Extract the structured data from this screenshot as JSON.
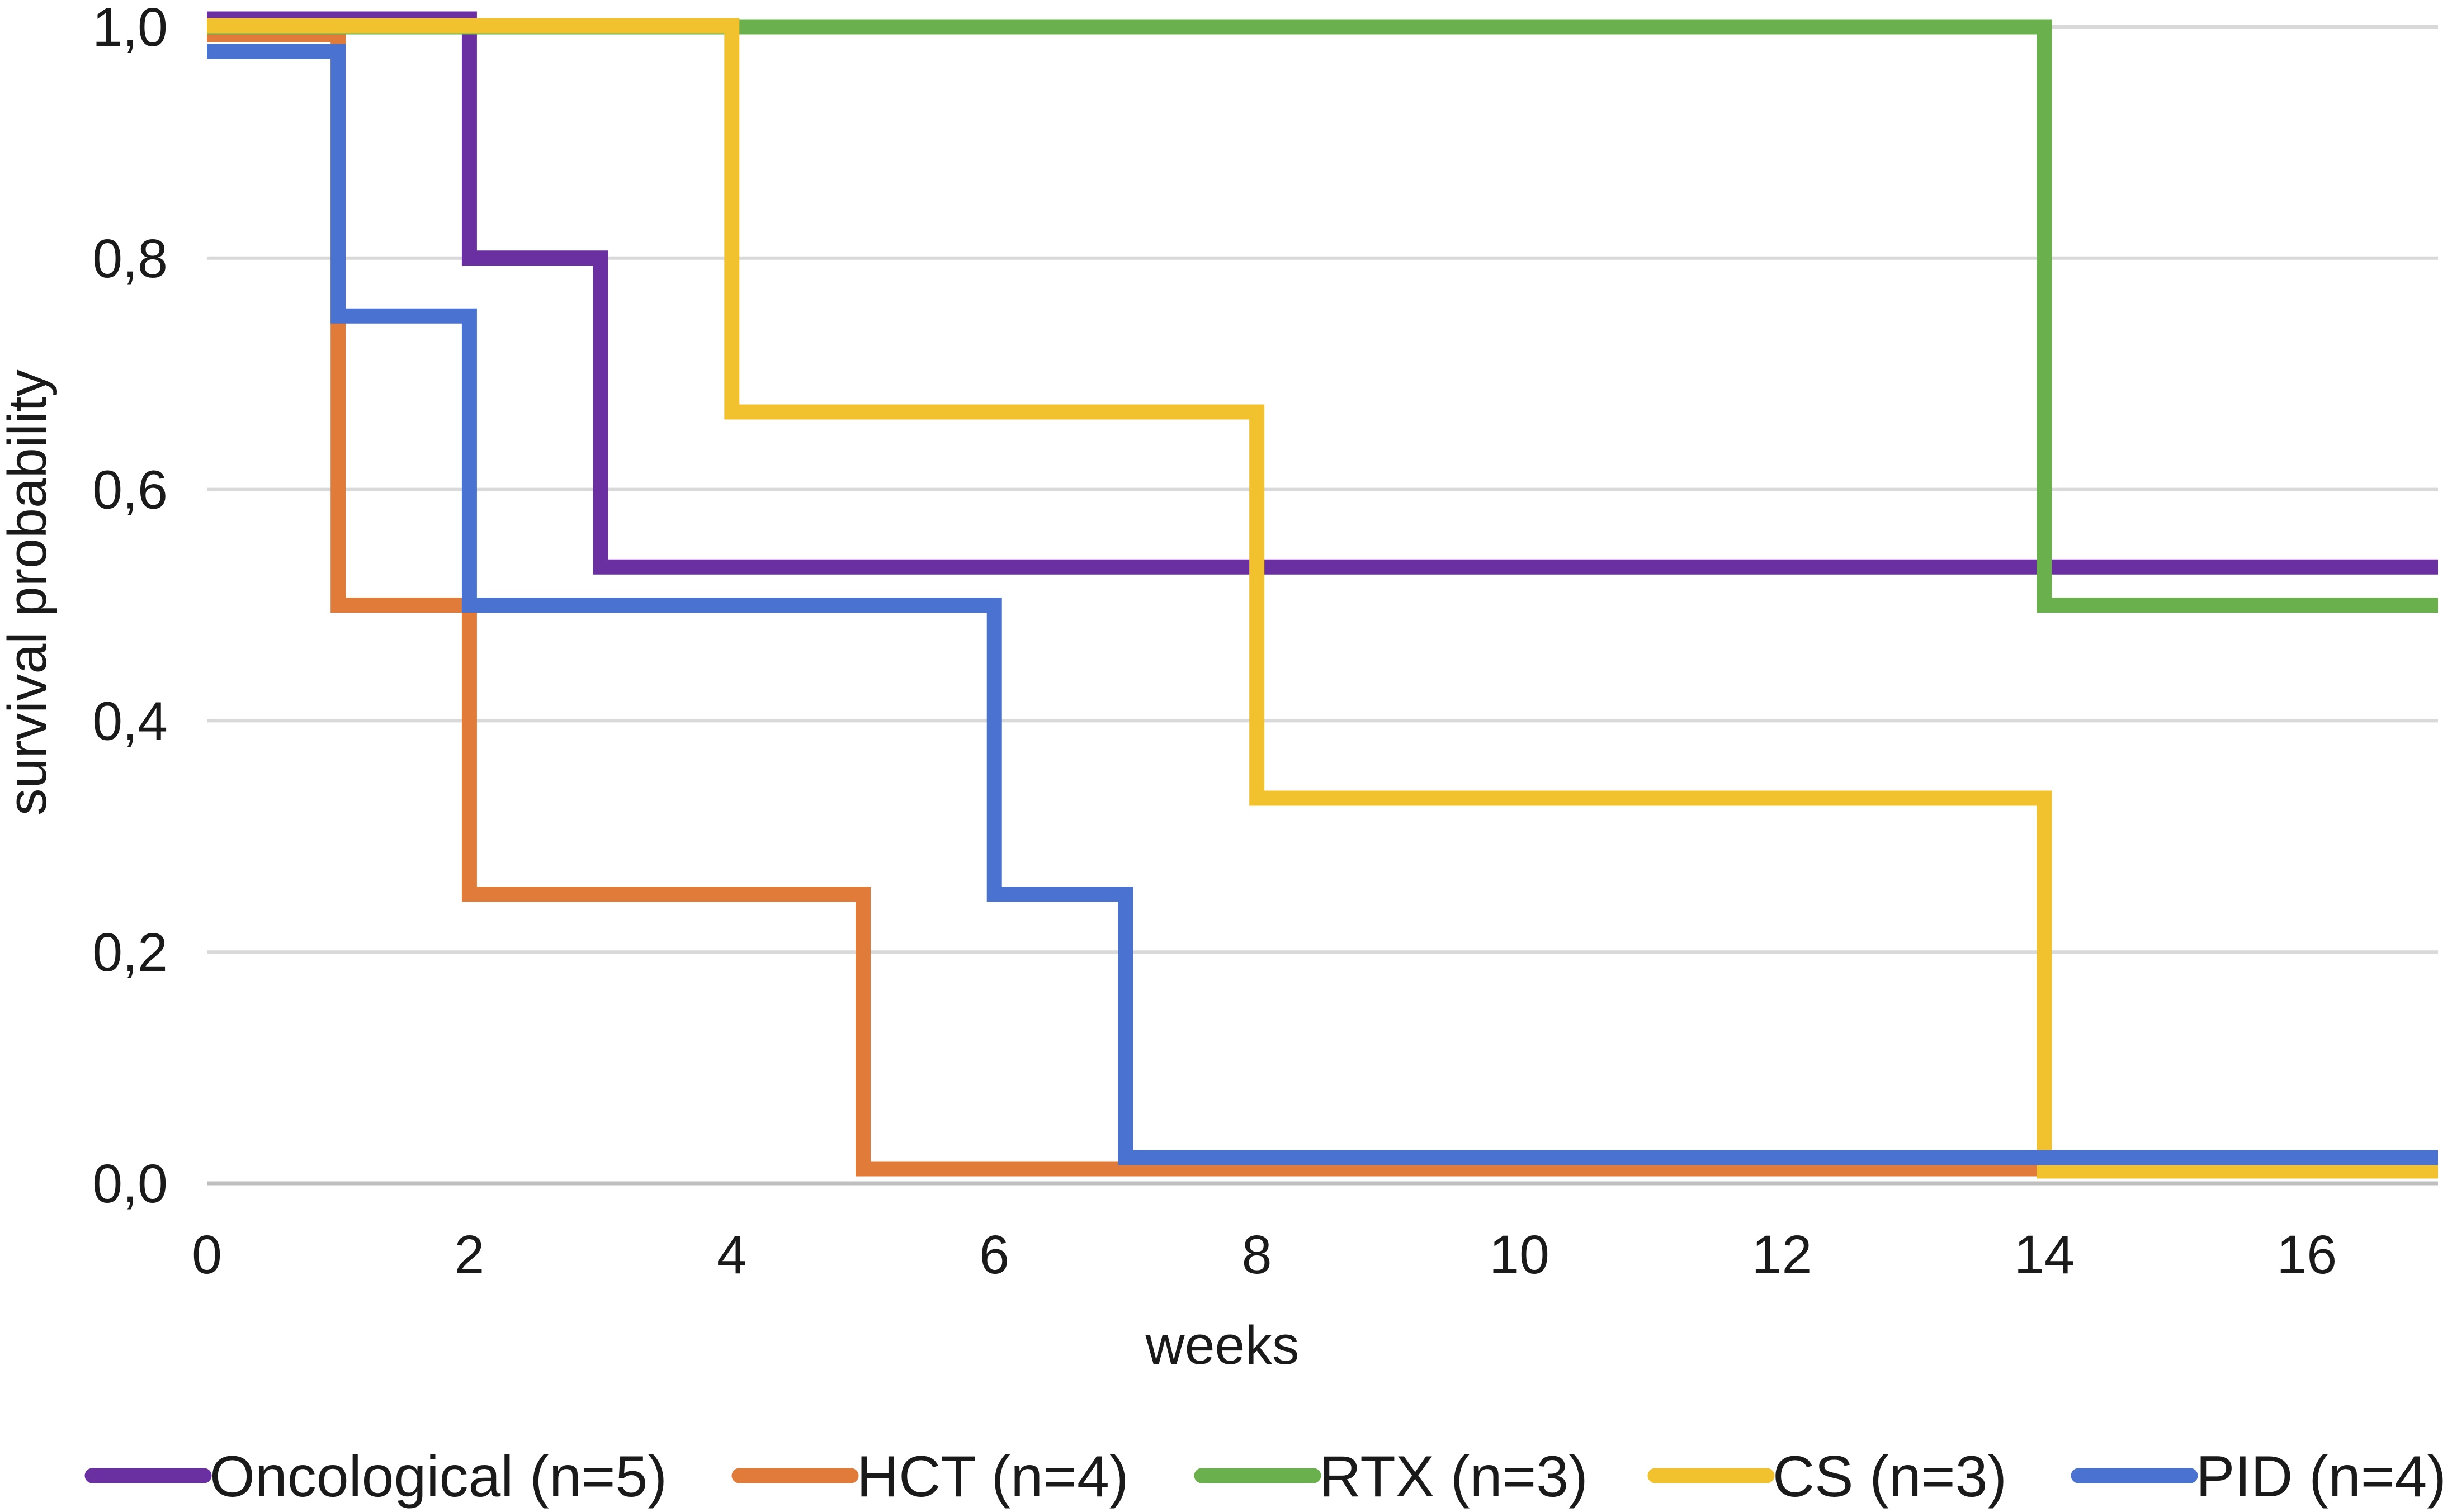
{
  "chart_data": {
    "type": "line",
    "step": true,
    "title": "",
    "xlabel": "weeks",
    "ylabel": "survival probability",
    "xlim": [
      0,
      17
    ],
    "ylim": [
      0,
      1
    ],
    "xticks": [
      0,
      2,
      4,
      6,
      8,
      10,
      12,
      14,
      16
    ],
    "yticks": [
      0,
      0.2,
      0.4,
      0.6,
      0.8,
      1.0
    ],
    "xtick_labels": [
      "0",
      "2",
      "4",
      "6",
      "8",
      "10",
      "12",
      "14",
      "16"
    ],
    "ytick_labels": [
      "0,0",
      "0,2",
      "0,4",
      "0,6",
      "0,8",
      "1,0"
    ],
    "grid": "horizontal",
    "legend_position": "bottom",
    "series": [
      {
        "name": "Oncological (n=5)",
        "color": "#6a2fa0",
        "x": [
          0,
          2,
          2,
          3,
          3,
          17
        ],
        "y": [
          1.0,
          1.0,
          0.8,
          0.8,
          0.533,
          0.533
        ]
      },
      {
        "name": "HCT (n=4)",
        "color": "#e07b39",
        "x": [
          0,
          1,
          1,
          2,
          2,
          5,
          5,
          17
        ],
        "y": [
          1.0,
          1.0,
          0.5,
          0.5,
          0.25,
          0.25,
          0.0,
          0.0
        ]
      },
      {
        "name": "RTX (n=3)",
        "color": "#6ab04c",
        "x": [
          0,
          14,
          14,
          17
        ],
        "y": [
          1.0,
          1.0,
          0.5,
          0.5
        ]
      },
      {
        "name": "CS (n=3)",
        "color": "#f2c12e",
        "x": [
          0,
          4,
          4,
          8,
          8,
          14,
          14,
          17
        ],
        "y": [
          1.0,
          1.0,
          0.667,
          0.667,
          0.333,
          0.333,
          0.0,
          0.0
        ]
      },
      {
        "name": "PID (n=4)",
        "color": "#4a72d1",
        "x": [
          0,
          1,
          1,
          2,
          2,
          6,
          6,
          7,
          7,
          17
        ],
        "y": [
          1.0,
          1.0,
          0.75,
          0.75,
          0.5,
          0.5,
          0.25,
          0.25,
          0.0,
          0.0
        ]
      }
    ]
  }
}
